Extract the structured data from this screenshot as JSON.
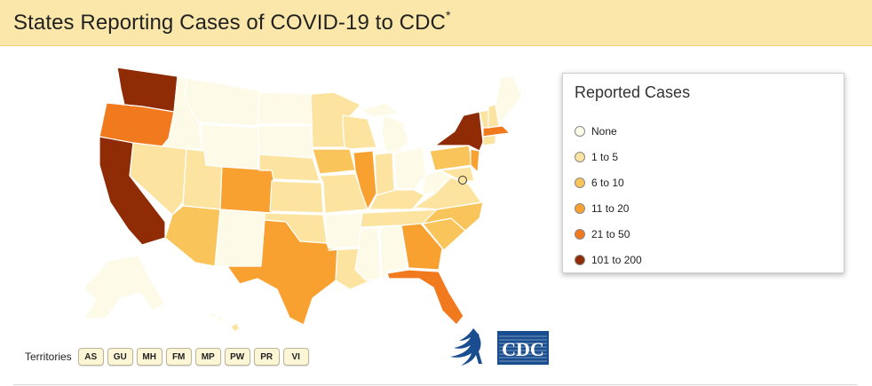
{
  "header": {
    "title": "States Reporting Cases of COVID-19 to CDC",
    "footnote_marker": "*"
  },
  "colors": {
    "none": "#fdfbe8",
    "c1_5": "#fce4a0",
    "c6_10": "#f9c55a",
    "c11_20": "#f8a131",
    "c21_50": "#f27a1e",
    "c101_200": "#8f2b05"
  },
  "legend": {
    "title": "Reported Cases",
    "items": [
      {
        "label": "None",
        "color": "#fdfbe8"
      },
      {
        "label": "1 to 5",
        "color": "#fce4a0"
      },
      {
        "label": "6 to 10",
        "color": "#f9c55a"
      },
      {
        "label": "11 to 20",
        "color": "#f8a131"
      },
      {
        "label": "21 to 50",
        "color": "#f27a1e"
      },
      {
        "label": "101 to 200",
        "color": "#8f2b05"
      }
    ]
  },
  "territories": {
    "label": "Territories",
    "buttons": [
      "AS",
      "GU",
      "MH",
      "FM",
      "MP",
      "PW",
      "PR",
      "VI"
    ]
  },
  "logos": {
    "hhs": "hhs-eagle-icon",
    "cdc": "CDC"
  }
}
